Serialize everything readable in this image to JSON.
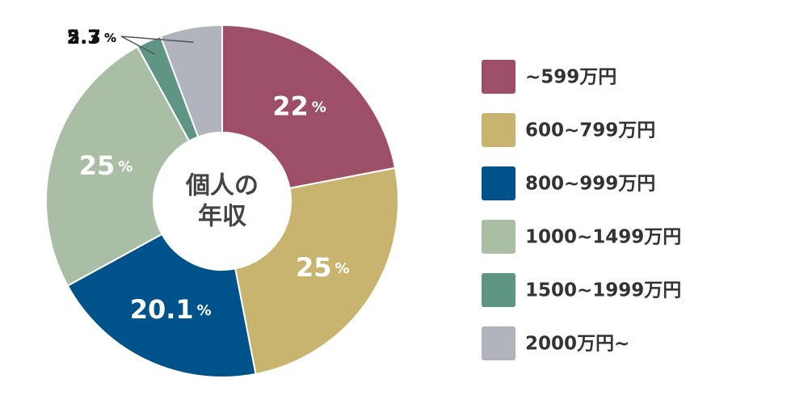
{
  "chart_data": {
    "type": "donut",
    "center_label": [
      "個人の",
      "年収"
    ],
    "categories": [
      "~599万円",
      "600~799万円",
      "800~999万円",
      "1000~1499万円",
      "1500~1999万円",
      "2000万円~"
    ],
    "values": [
      22,
      25,
      20.1,
      25,
      2.3,
      5.7
    ],
    "unit": "%",
    "colors": [
      "#9e4f68",
      "#c8b46f",
      "#00538a",
      "#a9bea4",
      "#5f9585",
      "#b1b3bd"
    ],
    "legend": "right"
  }
}
